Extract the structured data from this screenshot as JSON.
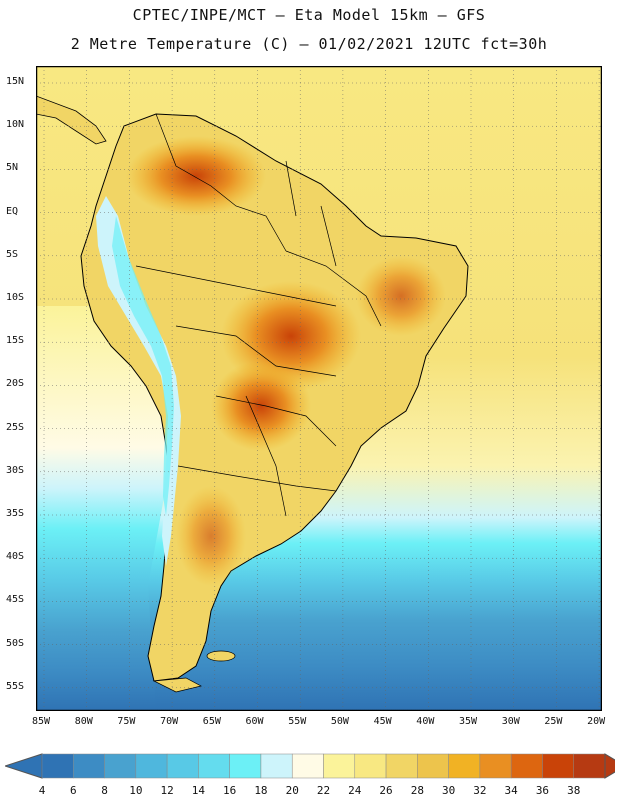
{
  "header": {
    "title_line1": "CPTEC/INPE/MCT –  Eta Model 15km – GFS",
    "title_line2": "2 Metre Temperature (C) – 01/02/2021 12UTC fct=30h"
  },
  "map": {
    "lat_labels": [
      "15N",
      "10N",
      "5N",
      "EQ",
      "5S",
      "10S",
      "15S",
      "20S",
      "25S",
      "30S",
      "35S",
      "40S",
      "45S",
      "50S",
      "55S"
    ],
    "lon_labels": [
      "85W",
      "80W",
      "75W",
      "70W",
      "65W",
      "60W",
      "55W",
      "50W",
      "45W",
      "40W",
      "35W",
      "30W",
      "25W",
      "20W"
    ]
  },
  "colorbar": {
    "colors": [
      "#2f73b4",
      "#3d8cc4",
      "#49a2cf",
      "#4fb7dd",
      "#58c9e6",
      "#64dcee",
      "#6cf0f6",
      "#cdf4fb",
      "#fffbe6",
      "#fbf39a",
      "#f8e882",
      "#f1d565",
      "#edc44c",
      "#f1b224",
      "#e98f22",
      "#dd6610",
      "#c94308",
      "#b63a12"
    ],
    "labels": [
      "4",
      "6",
      "8",
      "10",
      "12",
      "14",
      "16",
      "18",
      "20",
      "22",
      "24",
      "26",
      "28",
      "30",
      "32",
      "34",
      "36",
      "38"
    ]
  }
}
